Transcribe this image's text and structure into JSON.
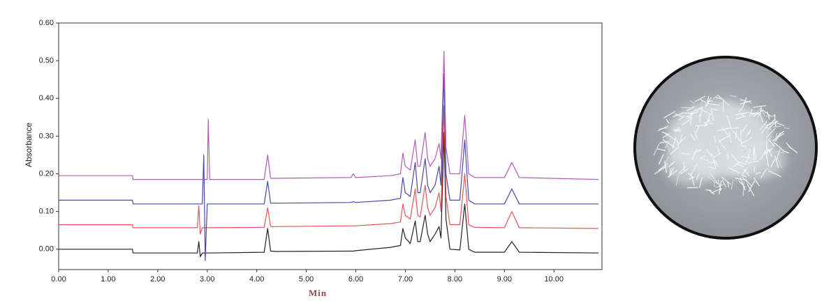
{
  "chart_data": {
    "type": "line",
    "y_label": "Absorbance",
    "x_label": "Min",
    "x": [
      0,
      1.49,
      1.5,
      1.55,
      2.8,
      2.83,
      2.86,
      2.9,
      2.93,
      2.96,
      3.0,
      3.02,
      3.05,
      4.15,
      4.22,
      4.28,
      4.4,
      5.9,
      5.95,
      6.0,
      6.7,
      6.9,
      6.95,
      7.0,
      7.1,
      7.2,
      7.25,
      7.3,
      7.4,
      7.45,
      7.5,
      7.6,
      7.68,
      7.72,
      7.78,
      7.82,
      7.9,
      8.1,
      8.2,
      8.28,
      8.4,
      9.0,
      9.15,
      9.3,
      10.9
    ],
    "series": [
      {
        "color": "#222222",
        "values": [
          0,
          0,
          -0.01,
          -0.01,
          -0.01,
          0.02,
          -0.02,
          -0.01,
          -0.01,
          -0.01,
          -0.01,
          -0.01,
          -0.01,
          -0.008,
          0.055,
          -0.005,
          -0.006,
          -0.005,
          -0.005,
          -0.004,
          0.005,
          0.01,
          0.055,
          0.03,
          0.015,
          0.075,
          0.02,
          0.02,
          0.09,
          0.04,
          0.02,
          0.04,
          0.06,
          0.03,
          0.31,
          0.08,
          0.0,
          -0.002,
          0.12,
          0.0,
          -0.008,
          -0.008,
          0.02,
          -0.008,
          -0.01
        ]
      },
      {
        "color": "#e35555",
        "values": [
          0.065,
          0.065,
          0.057,
          0.057,
          0.057,
          0.115,
          0.04,
          0.057,
          0.057,
          0.057,
          0.057,
          0.057,
          0.057,
          0.058,
          0.11,
          0.06,
          0.06,
          0.062,
          0.062,
          0.062,
          0.068,
          0.072,
          0.12,
          0.09,
          0.08,
          0.16,
          0.09,
          0.085,
          0.17,
          0.11,
          0.09,
          0.11,
          0.15,
          0.1,
          0.38,
          0.14,
          0.065,
          0.065,
          0.2,
          0.065,
          0.058,
          0.057,
          0.1,
          0.057,
          0.055
        ]
      },
      {
        "color": "#4848aa",
        "values": [
          0.13,
          0.13,
          0.12,
          0.12,
          0.12,
          0.12,
          0.12,
          0.12,
          0.25,
          -0.03,
          0.12,
          0.12,
          0.12,
          0.12,
          0.18,
          0.122,
          0.122,
          0.124,
          0.126,
          0.124,
          0.13,
          0.135,
          0.19,
          0.15,
          0.14,
          0.23,
          0.15,
          0.15,
          0.24,
          0.17,
          0.15,
          0.17,
          0.22,
          0.17,
          0.465,
          0.2,
          0.13,
          0.13,
          0.29,
          0.13,
          0.12,
          0.12,
          0.16,
          0.12,
          0.12
        ]
      },
      {
        "color": "#b45cb4",
        "values": [
          0.195,
          0.195,
          0.185,
          0.185,
          0.185,
          0.185,
          0.185,
          0.185,
          0.185,
          0.185,
          0.185,
          0.345,
          0.185,
          0.185,
          0.25,
          0.188,
          0.188,
          0.19,
          0.2,
          0.19,
          0.195,
          0.2,
          0.255,
          0.22,
          0.21,
          0.29,
          0.22,
          0.22,
          0.31,
          0.24,
          0.22,
          0.24,
          0.28,
          0.24,
          0.525,
          0.27,
          0.2,
          0.2,
          0.355,
          0.2,
          0.19,
          0.19,
          0.23,
          0.19,
          0.185
        ]
      }
    ],
    "xlim": [
      0,
      10.97
    ],
    "ylim": [
      -0.054,
      0.6
    ],
    "xticks": [
      {
        "value": 0,
        "label": "0.00"
      },
      {
        "value": 1,
        "label": "1.00"
      },
      {
        "value": 2,
        "label": "2.00"
      },
      {
        "value": 3,
        "label": "3.00"
      },
      {
        "value": 4,
        "label": "4.00"
      },
      {
        "value": 5,
        "label": "5.00"
      },
      {
        "value": 6,
        "label": "6.00"
      },
      {
        "value": 7,
        "label": "7.00"
      },
      {
        "value": 8,
        "label": "8.00"
      },
      {
        "value": 9,
        "label": "9.00"
      },
      {
        "value": 10,
        "label": "10.00"
      }
    ],
    "yticks": [
      {
        "value": 0,
        "label": "0.00"
      },
      {
        "value": 0.1,
        "label": "0.10"
      },
      {
        "value": 0.2,
        "label": "0.20"
      },
      {
        "value": 0.3,
        "label": "0.30"
      },
      {
        "value": 0.4,
        "label": "0.40"
      },
      {
        "value": 0.5,
        "label": "0.50"
      },
      {
        "value": 0.6,
        "label": "0.60"
      }
    ]
  }
}
